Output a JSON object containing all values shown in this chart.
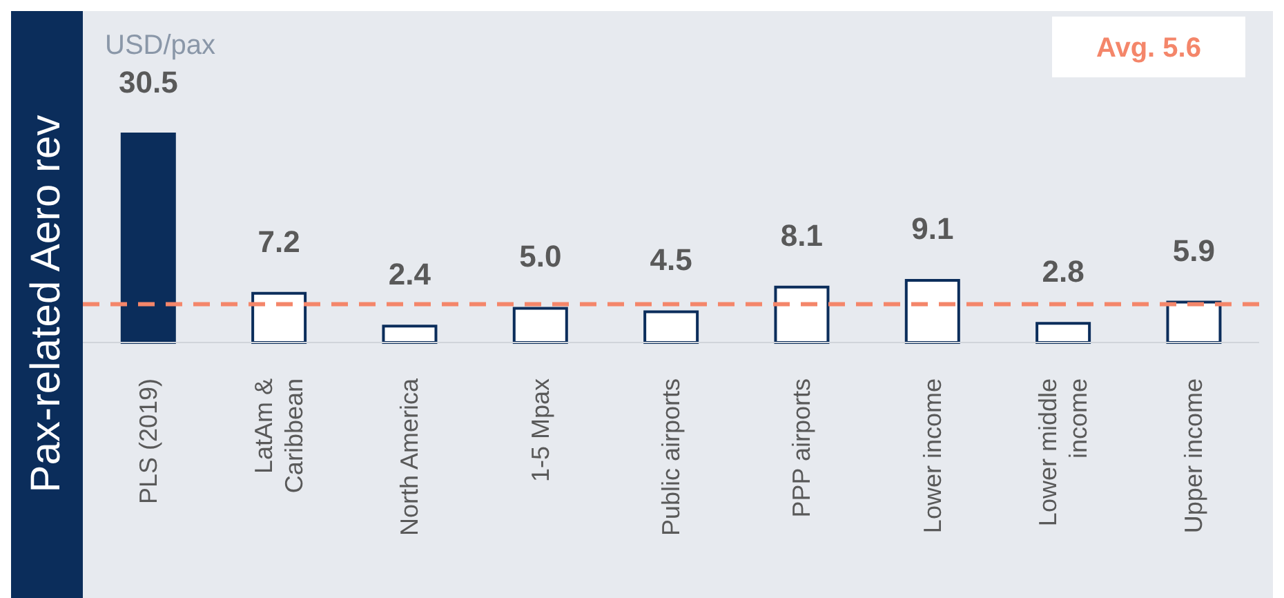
{
  "chart_data": {
    "type": "bar",
    "title": "Pax-related Aero rev",
    "ylabel": "USD/pax",
    "categories": [
      "PLS (2019)",
      "LatAm & Caribbean",
      "North America",
      "1-5 Mpax",
      "Public airports",
      "PPP airports",
      "Lower income",
      "Lower middle income",
      "Upper income"
    ],
    "values": [
      30.5,
      7.2,
      2.4,
      5.0,
      4.5,
      8.1,
      9.1,
      2.8,
      5.9
    ],
    "colors": [
      "#0b2d5b",
      "#ffffff",
      "#ffffff",
      "#ffffff",
      "#ffffff",
      "#ffffff",
      "#ffffff",
      "#ffffff",
      "#ffffff"
    ],
    "value_labels": [
      "30.5",
      "7.2",
      "2.4",
      "5.0",
      "4.5",
      "8.1",
      "9.1",
      "2.8",
      "5.9"
    ],
    "ref_lines": [
      {
        "axis": "y",
        "value": 5.6,
        "label": "Avg. 5.6",
        "color": "#f4866a",
        "line_style": "dashed"
      }
    ],
    "grid": false,
    "legend": false
  }
}
